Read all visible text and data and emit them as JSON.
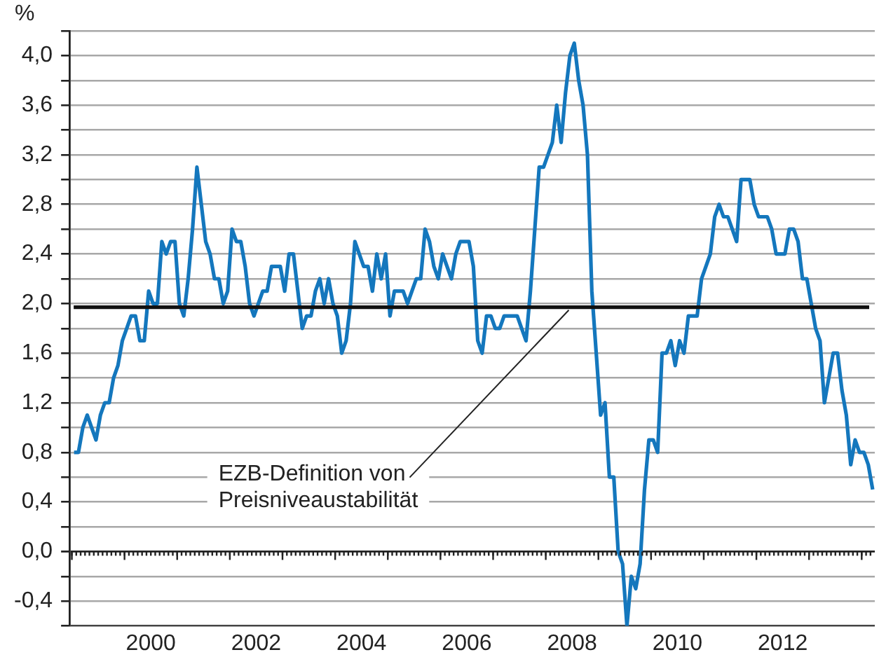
{
  "chart_data": {
    "type": "line",
    "ylabel": "%",
    "x": [
      "1999-01",
      "1999-02",
      "1999-03",
      "1999-04",
      "1999-05",
      "1999-06",
      "1999-07",
      "1999-08",
      "1999-09",
      "1999-10",
      "1999-11",
      "1999-12",
      "2000-01",
      "2000-02",
      "2000-03",
      "2000-04",
      "2000-05",
      "2000-06",
      "2000-07",
      "2000-08",
      "2000-09",
      "2000-10",
      "2000-11",
      "2000-12",
      "2001-01",
      "2001-02",
      "2001-03",
      "2001-04",
      "2001-05",
      "2001-06",
      "2001-07",
      "2001-08",
      "2001-09",
      "2001-10",
      "2001-11",
      "2001-12",
      "2002-01",
      "2002-02",
      "2002-03",
      "2002-04",
      "2002-05",
      "2002-06",
      "2002-07",
      "2002-08",
      "2002-09",
      "2002-10",
      "2002-11",
      "2002-12",
      "2003-01",
      "2003-02",
      "2003-03",
      "2003-04",
      "2003-05",
      "2003-06",
      "2003-07",
      "2003-08",
      "2003-09",
      "2003-10",
      "2003-11",
      "2003-12",
      "2004-01",
      "2004-02",
      "2004-03",
      "2004-04",
      "2004-05",
      "2004-06",
      "2004-07",
      "2004-08",
      "2004-09",
      "2004-10",
      "2004-11",
      "2004-12",
      "2005-01",
      "2005-02",
      "2005-03",
      "2005-04",
      "2005-05",
      "2005-06",
      "2005-07",
      "2005-08",
      "2005-09",
      "2005-10",
      "2005-11",
      "2005-12",
      "2006-01",
      "2006-02",
      "2006-03",
      "2006-04",
      "2006-05",
      "2006-06",
      "2006-07",
      "2006-08",
      "2006-09",
      "2006-10",
      "2006-11",
      "2006-12",
      "2007-01",
      "2007-02",
      "2007-03",
      "2007-04",
      "2007-05",
      "2007-06",
      "2007-07",
      "2007-08",
      "2007-09",
      "2007-10",
      "2007-11",
      "2007-12",
      "2008-01",
      "2008-02",
      "2008-03",
      "2008-04",
      "2008-05",
      "2008-06",
      "2008-07",
      "2008-08",
      "2008-09",
      "2008-10",
      "2008-11",
      "2008-12",
      "2009-01",
      "2009-02",
      "2009-03",
      "2009-04",
      "2009-05",
      "2009-06",
      "2009-07",
      "2009-08",
      "2009-09",
      "2009-10",
      "2009-11",
      "2009-12",
      "2010-01",
      "2010-02",
      "2010-03",
      "2010-04",
      "2010-05",
      "2010-06",
      "2010-07",
      "2010-08",
      "2010-09",
      "2010-10",
      "2010-11",
      "2010-12",
      "2011-01",
      "2011-02",
      "2011-03",
      "2011-04",
      "2011-05",
      "2011-06",
      "2011-07",
      "2011-08",
      "2011-09",
      "2011-10",
      "2011-11",
      "2011-12",
      "2012-01",
      "2012-02",
      "2012-03",
      "2012-04",
      "2012-05",
      "2012-06",
      "2012-07",
      "2012-08",
      "2012-09",
      "2012-10",
      "2012-11",
      "2012-12",
      "2013-01",
      "2013-02",
      "2013-03",
      "2013-04",
      "2013-05",
      "2013-06",
      "2013-07",
      "2013-08",
      "2013-09",
      "2013-10",
      "2013-11",
      "2013-12",
      "2014-01",
      "2014-02",
      "2014-03"
    ],
    "series": [
      {
        "color": "#1477bd",
        "values": [
          0.8,
          0.8,
          1.0,
          1.1,
          1.0,
          0.9,
          1.1,
          1.2,
          1.2,
          1.4,
          1.5,
          1.7,
          1.8,
          1.9,
          1.9,
          1.7,
          1.7,
          2.1,
          2.0,
          2.0,
          2.5,
          2.4,
          2.5,
          2.5,
          2.0,
          1.9,
          2.2,
          2.6,
          3.1,
          2.8,
          2.5,
          2.4,
          2.2,
          2.2,
          2.0,
          2.1,
          2.6,
          2.5,
          2.5,
          2.3,
          2.0,
          1.9,
          2.0,
          2.1,
          2.1,
          2.3,
          2.3,
          2.3,
          2.1,
          2.4,
          2.4,
          2.1,
          1.8,
          1.9,
          1.9,
          2.1,
          2.2,
          2.0,
          2.2,
          2.0,
          1.9,
          1.6,
          1.7,
          2.0,
          2.5,
          2.4,
          2.3,
          2.3,
          2.1,
          2.4,
          2.2,
          2.4,
          1.9,
          2.1,
          2.1,
          2.1,
          2.0,
          2.1,
          2.2,
          2.2,
          2.6,
          2.5,
          2.3,
          2.2,
          2.4,
          2.3,
          2.2,
          2.4,
          2.5,
          2.5,
          2.5,
          2.3,
          1.7,
          1.6,
          1.9,
          1.9,
          1.8,
          1.8,
          1.9,
          1.9,
          1.9,
          1.9,
          1.8,
          1.7,
          2.1,
          2.6,
          3.1,
          3.1,
          3.2,
          3.3,
          3.6,
          3.3,
          3.7,
          4.0,
          4.1,
          3.8,
          3.6,
          3.2,
          2.1,
          1.6,
          1.1,
          1.2,
          0.6,
          0.6,
          0.0,
          -0.1,
          -0.6,
          -0.2,
          -0.3,
          -0.1,
          0.5,
          0.9,
          0.9,
          0.8,
          1.6,
          1.6,
          1.7,
          1.5,
          1.7,
          1.6,
          1.9,
          1.9,
          1.9,
          2.2,
          2.3,
          2.4,
          2.7,
          2.8,
          2.7,
          2.7,
          2.6,
          2.5,
          3.0,
          3.0,
          3.0,
          2.8,
          2.7,
          2.7,
          2.7,
          2.6,
          2.4,
          2.4,
          2.4,
          2.6,
          2.6,
          2.5,
          2.2,
          2.2,
          2.0,
          1.8,
          1.7,
          1.2,
          1.4,
          1.6,
          1.6,
          1.3,
          1.1,
          0.7,
          0.9,
          0.8,
          0.8,
          0.7,
          0.5
        ]
      }
    ],
    "xlim": [
      "1998-12-15",
      "2014-03-31"
    ],
    "xticks": [
      {
        "value": "1999-01-01",
        "label": null
      },
      {
        "value": "2000-01-01",
        "label": null
      },
      {
        "value": "2000-07-01",
        "label": "2000"
      },
      {
        "value": "2001-01-01",
        "label": null
      },
      {
        "value": "2002-01-01",
        "label": null
      },
      {
        "value": "2002-07-01",
        "label": "2002"
      },
      {
        "value": "2003-01-01",
        "label": null
      },
      {
        "value": "2004-01-01",
        "label": null
      },
      {
        "value": "2004-07-01",
        "label": "2004"
      },
      {
        "value": "2005-01-01",
        "label": null
      },
      {
        "value": "2006-01-01",
        "label": null
      },
      {
        "value": "2006-07-01",
        "label": "2006"
      },
      {
        "value": "2007-01-01",
        "label": null
      },
      {
        "value": "2008-01-01",
        "label": null
      },
      {
        "value": "2008-07-01",
        "label": "2008"
      },
      {
        "value": "2009-01-01",
        "label": null
      },
      {
        "value": "2010-01-01",
        "label": null
      },
      {
        "value": "2010-07-01",
        "label": "2010"
      },
      {
        "value": "2011-01-01",
        "label": null
      },
      {
        "value": "2012-01-01",
        "label": null
      },
      {
        "value": "2012-07-01",
        "label": "2012"
      },
      {
        "value": "2013-01-01",
        "label": null
      },
      {
        "value": "2014-01-01",
        "label": null
      }
    ],
    "ylim": [
      -0.6,
      4.2
    ],
    "yticks": [
      {
        "value": -0.6,
        "label": null
      },
      {
        "value": -0.4,
        "label": "-0,4"
      },
      {
        "value": -0.2,
        "label": null
      },
      {
        "value": 0,
        "label": "0,0"
      },
      {
        "value": 0.2,
        "label": null
      },
      {
        "value": 0.4,
        "label": "0,4"
      },
      {
        "value": 0.6,
        "label": null
      },
      {
        "value": 0.8,
        "label": "0,8"
      },
      {
        "value": 1.0,
        "label": null
      },
      {
        "value": 1.2,
        "label": "1,2"
      },
      {
        "value": 1.4,
        "label": null
      },
      {
        "value": 1.6,
        "label": "1,6"
      },
      {
        "value": 1.8,
        "label": null
      },
      {
        "value": 2.0,
        "label": "2,0"
      },
      {
        "value": 2.2,
        "label": null
      },
      {
        "value": 2.4,
        "label": "2,4"
      },
      {
        "value": 2.6,
        "label": null
      },
      {
        "value": 2.8,
        "label": "2,8"
      },
      {
        "value": 3.0,
        "label": null
      },
      {
        "value": 3.2,
        "label": "3,2"
      },
      {
        "value": 3.4,
        "label": null
      },
      {
        "value": 3.6,
        "label": "3,6"
      },
      {
        "value": 3.8,
        "label": null
      },
      {
        "value": 4.0,
        "label": "4,0"
      },
      {
        "value": 4.2,
        "label": null
      }
    ],
    "grid": "y",
    "ref_lines": [
      {
        "axis": "y",
        "value": 1.97,
        "label": "EZB-Definition von Preisniveaustabilität",
        "color": "#111111"
      }
    ]
  }
}
